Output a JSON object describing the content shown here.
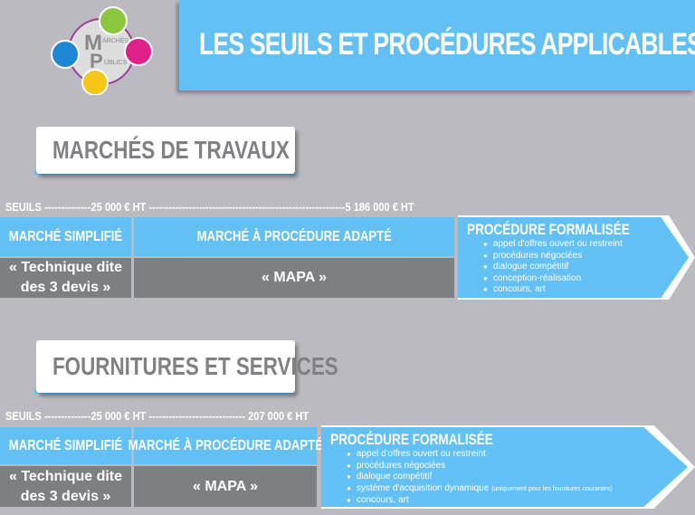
{
  "logo": {
    "text": "MARCHÉS PUBLICS"
  },
  "header": {
    "title": "LES SEUILS ET PROCÉDURES APPLICABLES"
  },
  "colors": {
    "blue": "#62c0f4",
    "grey": "#7e7f83",
    "background": "#bbbac0"
  },
  "travaux": {
    "title": "MARCHÉS DE TRAVAUX",
    "seuils": "SEUILS --------------25 000 € HT -----------------------------------------------------------5 186 000 € HT",
    "col1_title": "MARCHÉ SIMPLIFIÉ",
    "col1_body1": "« Technique dite",
    "col1_body2": "des 3 devis »",
    "col2_title": "MARCHÉ À PROCÉDURE ADAPTÉ",
    "col2_body": "« MAPA »",
    "formal_title": "PROCÉDURE FORMALISÉE",
    "formal_items": [
      "appel d'offres ouvert ou restreint",
      "procédures négociées",
      "dialogue compétitif",
      "conception-réalisation",
      "concours, art"
    ]
  },
  "fournitures": {
    "title": "FOURNITURES ET SERVICES",
    "seuils": "SEUILS --------------25 000 € HT ----------------------------- 207 000 € HT",
    "col1_title": "MARCHÉ SIMPLIFIÉ",
    "col1_body1": "« Technique dite",
    "col1_body2": "des 3 devis »",
    "col2_title": "MARCHÉ À PROCÉDURE ADAPTÉ",
    "col2_body": "« MAPA »",
    "formal_title": "PROCÉDURE FORMALISÉE",
    "formal_items": [
      "appel d'offres ouvert ou restreint",
      "procédures négociées",
      "dialogue compétitif",
      "système d'acquisition dynamique",
      "concours, art"
    ],
    "formal_note": "(uniquement pour les founitures courantes)"
  }
}
